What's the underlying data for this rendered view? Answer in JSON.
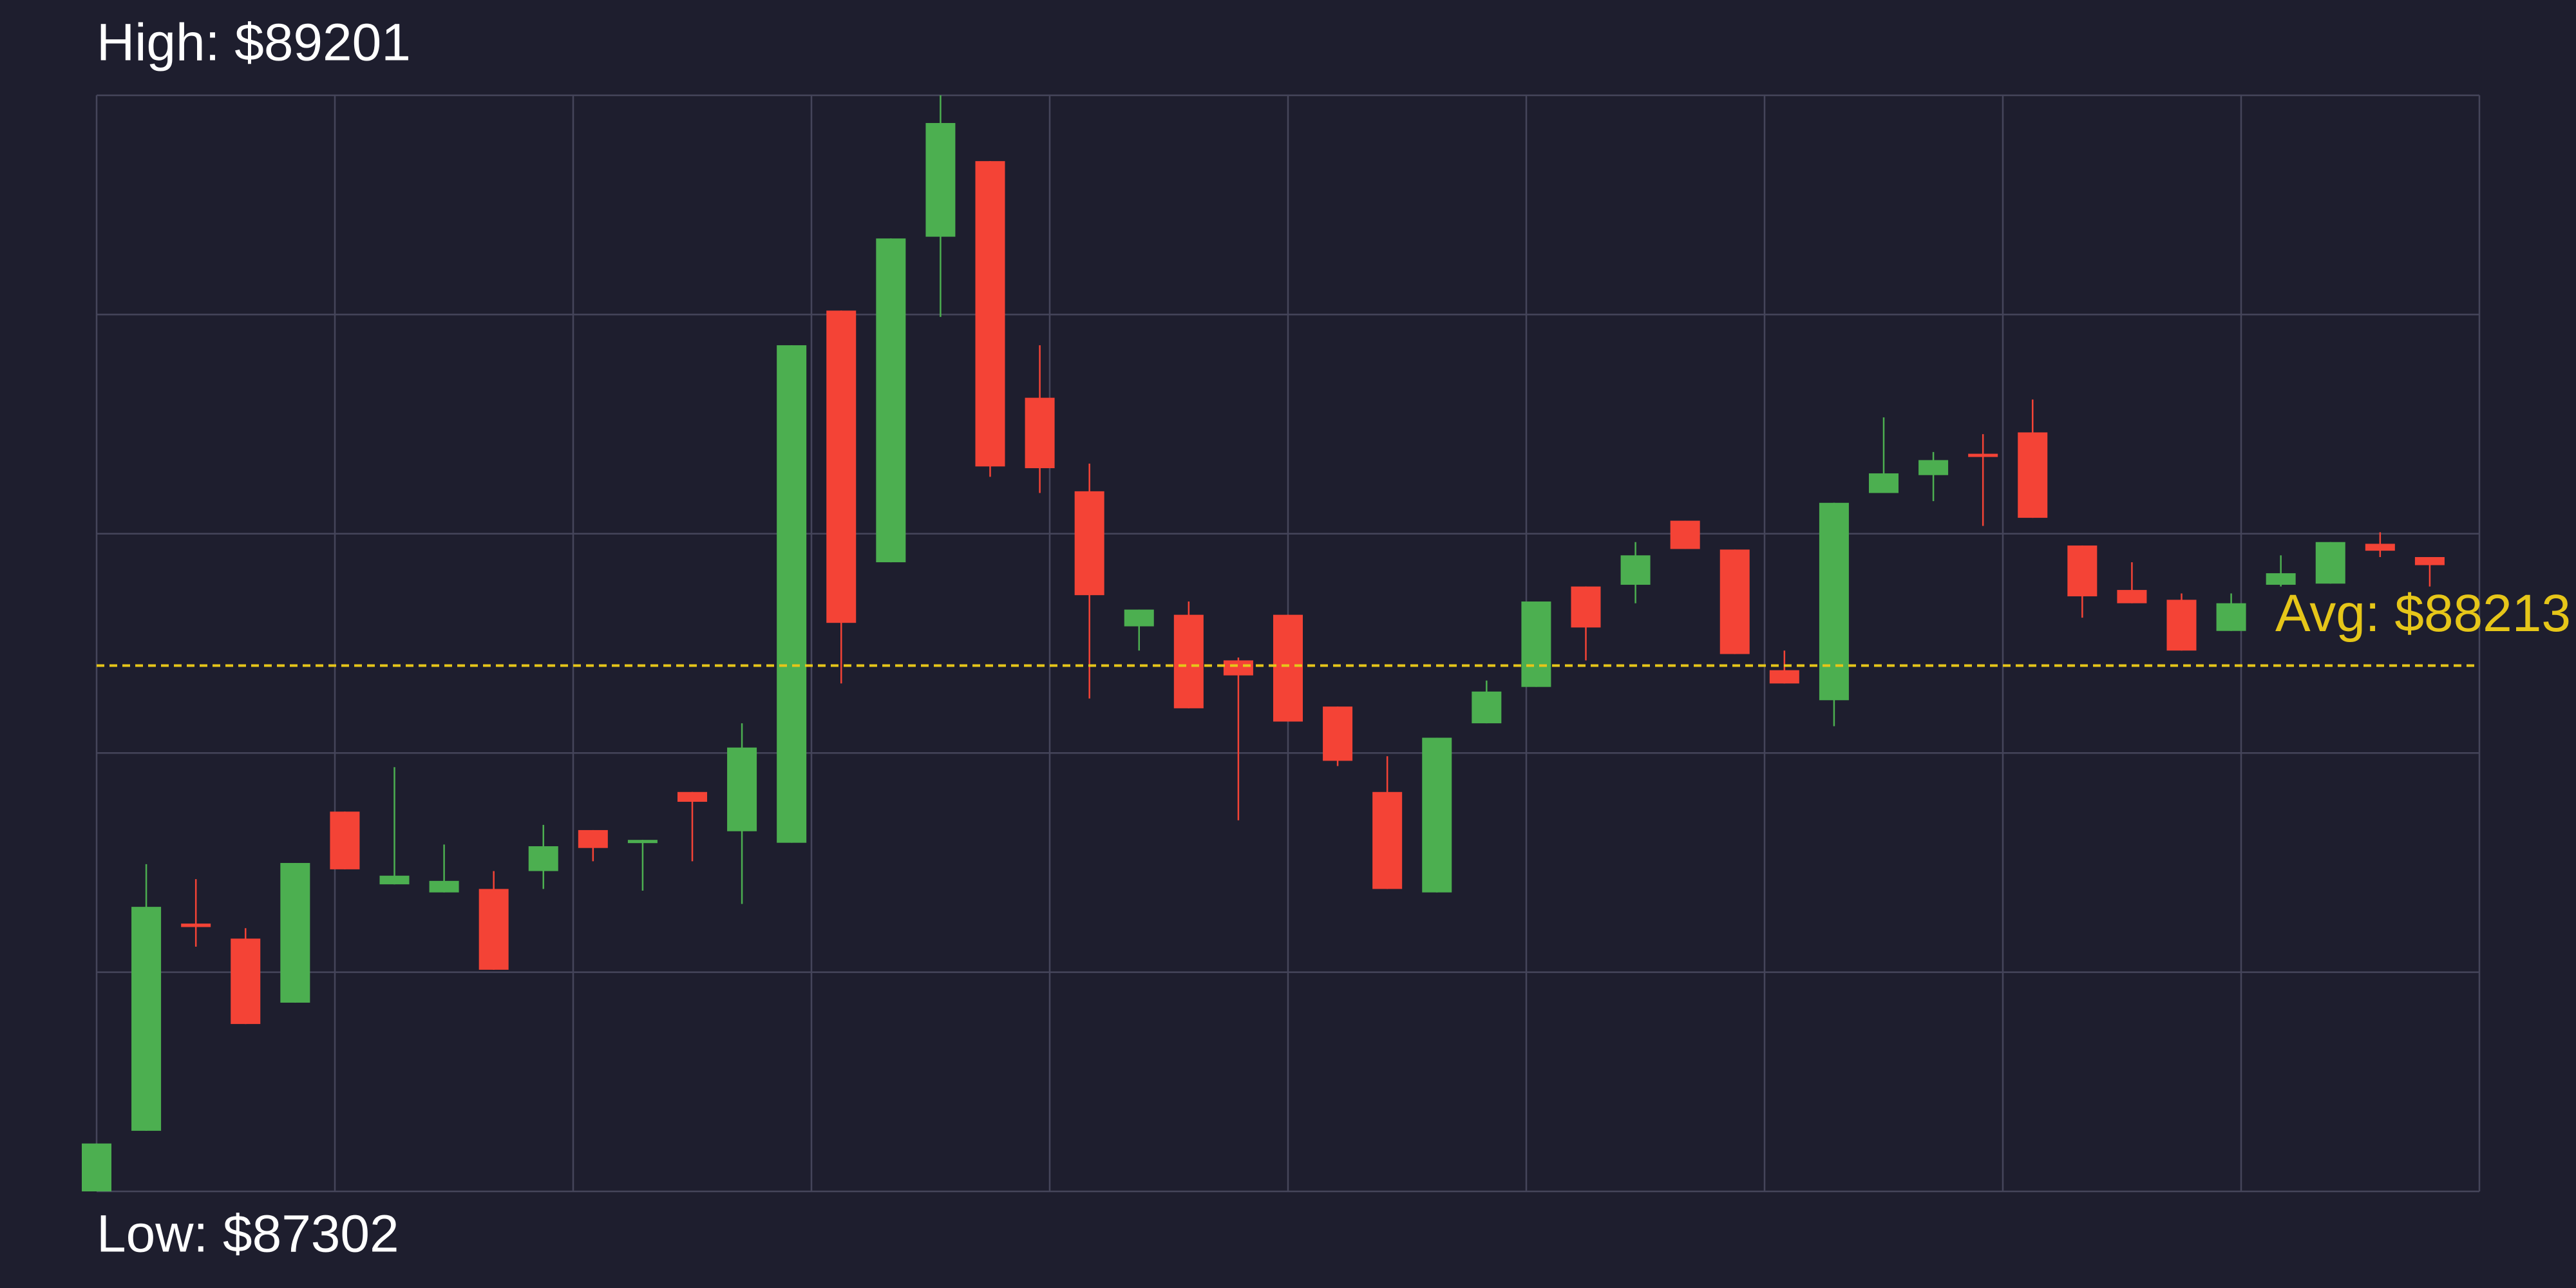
{
  "chart_data": {
    "type": "candlestick",
    "high_label": "High: $89201",
    "low_label": "Low: $87302",
    "avg_label": "Avg: $88213",
    "avg": 88213,
    "avg_color": "#e6c619",
    "ylim": [
      87302,
      89201
    ],
    "grid": true,
    "up_color": "#4caf50",
    "down_color": "#f44336",
    "open": [
      87302,
      87407,
      87766,
      87740,
      87629,
      87960,
      87834,
      87820,
      87826,
      87857,
      87928,
      87908,
      87994,
      87926,
      87906,
      88828,
      88392,
      88956,
      89087,
      88677,
      88515,
      88281,
      88301,
      88222,
      88301,
      88142,
      87994,
      87820,
      88113,
      88176,
      88350,
      88353,
      88464,
      88414,
      88205,
      88153,
      88512,
      88543,
      88580,
      88617,
      88421,
      88344,
      88327,
      88273,
      88353,
      88355,
      88424,
      88401
    ],
    "high": [
      87385,
      87869,
      87843,
      87758,
      87871,
      87960,
      88037,
      87903,
      87857,
      87937,
      87928,
      87911,
      87994,
      88113,
      88768,
      88828,
      88953,
      89201,
      89087,
      88768,
      88563,
      88310,
      88324,
      88227,
      88301,
      88142,
      88056,
      88088,
      88187,
      88324,
      88350,
      88427,
      88464,
      88414,
      88239,
      88495,
      88643,
      88583,
      88614,
      88674,
      88421,
      88392,
      88338,
      88338,
      88404,
      88427,
      88444,
      88401
    ],
    "low": [
      87302,
      87407,
      87726,
      87592,
      87629,
      87860,
      87834,
      87820,
      87686,
      87826,
      87874,
      87823,
      87874,
      87800,
      87906,
      88182,
      88392,
      88817,
      88540,
      88512,
      88156,
      88239,
      88139,
      87945,
      88116,
      88039,
      87826,
      87820,
      88113,
      88176,
      88222,
      88321,
      88415,
      88233,
      88182,
      88108,
      88512,
      88498,
      88455,
      88469,
      88296,
      88321,
      88239,
      88273,
      88350,
      88355,
      88401,
      88350
    ],
    "close": [
      87385,
      87795,
      87760,
      87592,
      87871,
      87860,
      87849,
      87840,
      87686,
      87900,
      87897,
      87911,
      87977,
      88071,
      88768,
      88287,
      88953,
      89153,
      88558,
      88555,
      88335,
      88310,
      88139,
      88196,
      88116,
      88048,
      87826,
      88088,
      88168,
      88324,
      88279,
      88404,
      88415,
      88233,
      88182,
      88495,
      88546,
      88569,
      88575,
      88469,
      88333,
      88321,
      88239,
      88321,
      88373,
      88427,
      88412,
      88387
    ]
  }
}
